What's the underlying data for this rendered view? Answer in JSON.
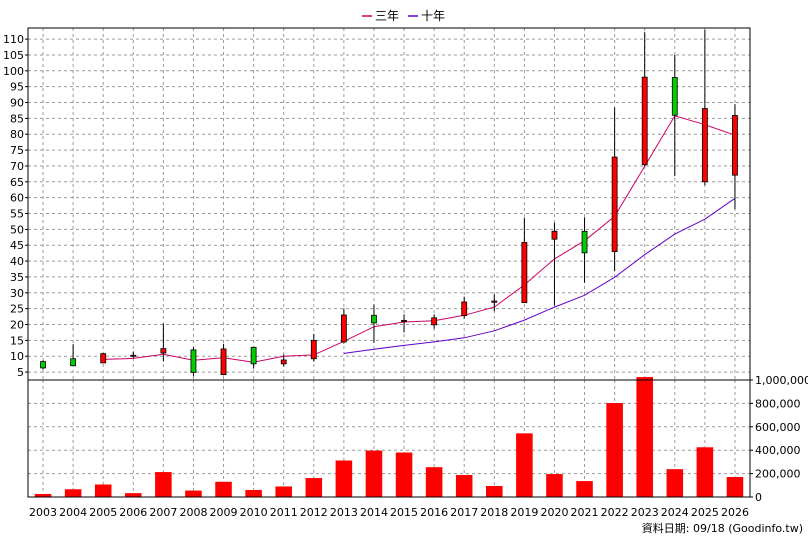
{
  "chart_data": {
    "type": "candlestick",
    "legend": [
      {
        "label": "三年",
        "color": "#cc0066"
      },
      {
        "label": "十年",
        "color": "#6600cc"
      }
    ],
    "source_label": "資料日期: 09/18 (Goodinfo.tw)",
    "up_color": "#ff0000",
    "down_color": "#00cc00",
    "years": [
      "2003",
      "2004",
      "2005",
      "2006",
      "2007",
      "2008",
      "2009",
      "2010",
      "2011",
      "2012",
      "2013",
      "2014",
      "2015",
      "2016",
      "2017",
      "2018",
      "2019",
      "2020",
      "2021",
      "2022",
      "2023",
      "2024",
      "2025",
      "2026"
    ],
    "price_axis": {
      "ylim": [
        2.5,
        113.5
      ],
      "ticks": [
        5,
        10,
        15,
        20,
        25,
        30,
        35,
        40,
        45,
        50,
        55,
        60,
        65,
        70,
        75,
        80,
        85,
        90,
        95,
        100,
        105,
        110
      ]
    },
    "volume_axis": {
      "ylim": [
        0,
        1000000
      ],
      "ticks": [
        0,
        200000,
        400000,
        600000,
        800000,
        1000000
      ],
      "tick_labels": [
        "0",
        "200,000",
        "400,000",
        "600,000",
        "800,000",
        "1,000,000"
      ]
    },
    "candles": [
      {
        "open": 6.3,
        "close": 8.3,
        "high": 8.7,
        "low": 5.8
      },
      {
        "open": 7.0,
        "close": 9.2,
        "high": 13.8,
        "low": 6.9
      },
      {
        "open": 10.8,
        "close": 7.9,
        "high": 11.0,
        "low": 7.8
      },
      {
        "open": 10.3,
        "close": 10.0,
        "high": 11.5,
        "low": 9.3
      },
      {
        "open": 12.4,
        "close": 11.0,
        "high": 20.3,
        "low": 8.4
      },
      {
        "open": 4.9,
        "close": 12.0,
        "high": 12.8,
        "low": 3.7
      },
      {
        "open": 12.3,
        "close": 4.2,
        "high": 13.9,
        "low": 4.0
      },
      {
        "open": 7.6,
        "close": 12.8,
        "high": 13.0,
        "low": 6.1
      },
      {
        "open": 8.8,
        "close": 7.6,
        "high": 10.5,
        "low": 6.8
      },
      {
        "open": 15.0,
        "close": 9.2,
        "high": 17.0,
        "low": 8.3
      },
      {
        "open": 23.0,
        "close": 14.5,
        "high": 25.1,
        "low": 14.0
      },
      {
        "open": 20.5,
        "close": 22.9,
        "high": 26.3,
        "low": 14.2
      },
      {
        "open": 21.3,
        "close": 20.9,
        "high": 23.2,
        "low": 17.5
      },
      {
        "open": 22.1,
        "close": 19.9,
        "high": 23.2,
        "low": 18.7
      },
      {
        "open": 27.1,
        "close": 22.8,
        "high": 28.8,
        "low": 21.9
      },
      {
        "open": 27.4,
        "close": 27.0,
        "high": 29.5,
        "low": 24.2
      },
      {
        "open": 45.9,
        "close": 26.9,
        "high": 53.7,
        "low": 26.8
      },
      {
        "open": 49.4,
        "close": 46.9,
        "high": 52.1,
        "low": 26.0
      },
      {
        "open": 42.6,
        "close": 49.4,
        "high": 53.8,
        "low": 33.2
      },
      {
        "open": 72.8,
        "close": 43.0,
        "high": 88.4,
        "low": 36.8
      },
      {
        "open": 98.0,
        "close": 70.4,
        "high": 112.2,
        "low": 69.9
      },
      {
        "open": 86.0,
        "close": 97.9,
        "high": 105.0,
        "low": 66.8
      },
      {
        "open": 88.1,
        "close": 65.0,
        "high": 112.9,
        "low": 63.9
      },
      {
        "open": 85.9,
        "close": 67.1,
        "high": 89.5,
        "low": 56.4
      }
    ],
    "series": [
      {
        "name": "三年",
        "values": [
          null,
          null,
          9.0,
          9.3,
          10.6,
          8.7,
          9.5,
          8.1,
          10.0,
          10.4,
          14.7,
          19.3,
          20.8,
          21.2,
          22.9,
          25.5,
          32.5,
          40.7,
          46.4,
          54.1,
          69.9,
          85.8,
          83.0,
          79.7
        ]
      },
      {
        "name": "十年",
        "values": [
          null,
          null,
          null,
          null,
          null,
          null,
          null,
          null,
          null,
          null,
          10.9,
          12.2,
          13.4,
          14.5,
          15.8,
          18.0,
          21.4,
          25.5,
          29.2,
          34.9,
          42.0,
          48.5,
          53.2,
          59.8
        ]
      }
    ],
    "volumes": [
      26000,
      66000,
      107000,
      33000,
      213000,
      55000,
      130000,
      60000,
      90000,
      162000,
      312000,
      397000,
      380000,
      255000,
      188000,
      94000,
      544000,
      196000,
      136000,
      803000,
      1025000,
      238000,
      425000,
      171000
    ]
  }
}
